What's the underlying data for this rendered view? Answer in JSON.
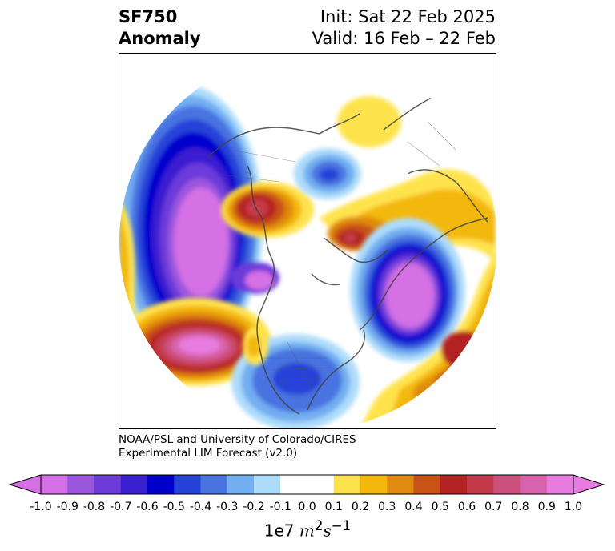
{
  "title": {
    "line1": "SF750",
    "line2": "Anomaly",
    "init": "Init: Sat 22 Feb 2025",
    "valid": "Valid: 16 Feb – 22 Feb"
  },
  "credit": {
    "line1": "NOAA/PSL and University of Colorado/CIRES",
    "line2": "Experimental LIM Forecast (v2.0)"
  },
  "colorbar": {
    "ticks": [
      "-1.0",
      "-0.9",
      "-0.8",
      "-0.7",
      "-0.6",
      "-0.5",
      "-0.4",
      "-0.3",
      "-0.2",
      "-0.1",
      "0.0",
      "0.1",
      "0.2",
      "0.3",
      "0.4",
      "0.5",
      "0.6",
      "0.7",
      "0.8",
      "0.9",
      "1.0"
    ],
    "colors": [
      "#d56fe5",
      "#9a57de",
      "#6c3bd9",
      "#3a1fd1",
      "#0000cd",
      "#2543d8",
      "#4a73e0",
      "#72aef0",
      "#aedcfb",
      "#ffffff",
      "#ffffff",
      "#ffe34d",
      "#f3b80a",
      "#e08b10",
      "#c95214",
      "#b22222",
      "#c53a4a",
      "#cc4f7c",
      "#d863ad",
      "#e87be0"
    ],
    "extend_min_color": "#d56fe5",
    "extend_max_color": "#e87be0",
    "units_prefix": "1e7 ",
    "units_main": "m",
    "units_sup1": "2",
    "units_mid": "s",
    "units_sup2": "−1"
  }
}
